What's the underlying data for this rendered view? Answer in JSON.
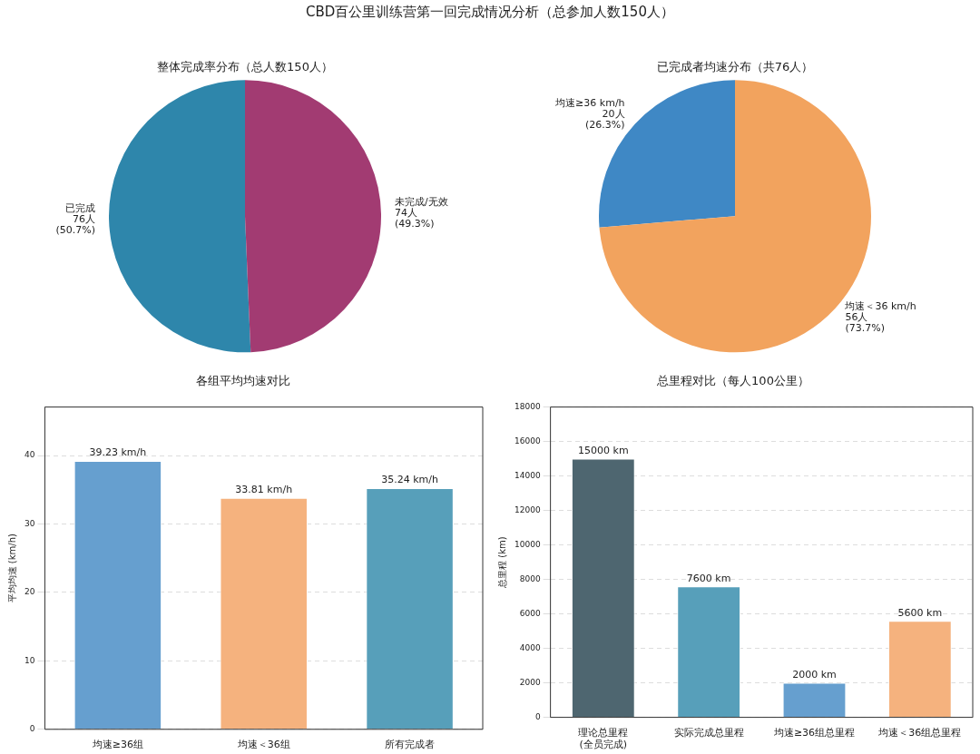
{
  "chart_data": [
    {
      "type": "pie",
      "title": "CBD百公里训练营第一回完成情况分析（总参加人数150人）",
      "subtitle": "整体完成率分布（总人数150人）",
      "categories": [
        "已完成",
        "未完成/无效"
      ],
      "values": [
        76,
        74
      ],
      "colors": [
        "#2e86ab",
        "#a23b72"
      ],
      "value_labels": [
        "76人\n(50.7%)",
        "74人\n(49.3%)"
      ]
    },
    {
      "type": "pie",
      "title": "已完成者均速分布（共76人）",
      "categories": [
        "均速≥36 km/h",
        "均速＜36 km/h"
      ],
      "values": [
        20,
        56
      ],
      "colors": [
        "#3f88c5",
        "#f2a35e"
      ],
      "value_labels": [
        "20人\n(26.3%)",
        "56人\n(73.7%)"
      ]
    },
    {
      "type": "bar",
      "title": "各组平均均速对比",
      "ylabel": "平均均速 (km/h)",
      "categories": [
        "均速≥36组",
        "均速＜36组",
        "所有完成者"
      ],
      "values": [
        39.23,
        33.81,
        35.24
      ],
      "colors": [
        "#669fcf",
        "#f5b27e",
        "#579fba"
      ],
      "value_labels": [
        "39.23 km/h",
        "33.81 km/h",
        "35.24 km/h"
      ],
      "ylim": [
        0,
        47.1
      ],
      "yticks": [
        0,
        10,
        20,
        30,
        40
      ],
      "grid": "y"
    },
    {
      "type": "bar",
      "title": "总里程对比（每人100公里）",
      "ylabel": "总里程 (km)",
      "categories": [
        "理论总里程\n(全员完成)",
        "实际完成总里程",
        "均速≥36组总里程",
        "均速＜36组总里程"
      ],
      "values": [
        15000,
        7600,
        2000,
        5600
      ],
      "colors": [
        "#4e6670",
        "#579fba",
        "#669fcf",
        "#f5b27e"
      ],
      "value_labels": [
        "15000 km",
        "7600 km",
        "2000 km",
        "5600 km"
      ],
      "ylim": [
        0,
        18000
      ],
      "yticks": [
        0,
        2000,
        4000,
        6000,
        8000,
        10000,
        12000,
        14000,
        16000,
        18000
      ],
      "grid": "y"
    }
  ]
}
